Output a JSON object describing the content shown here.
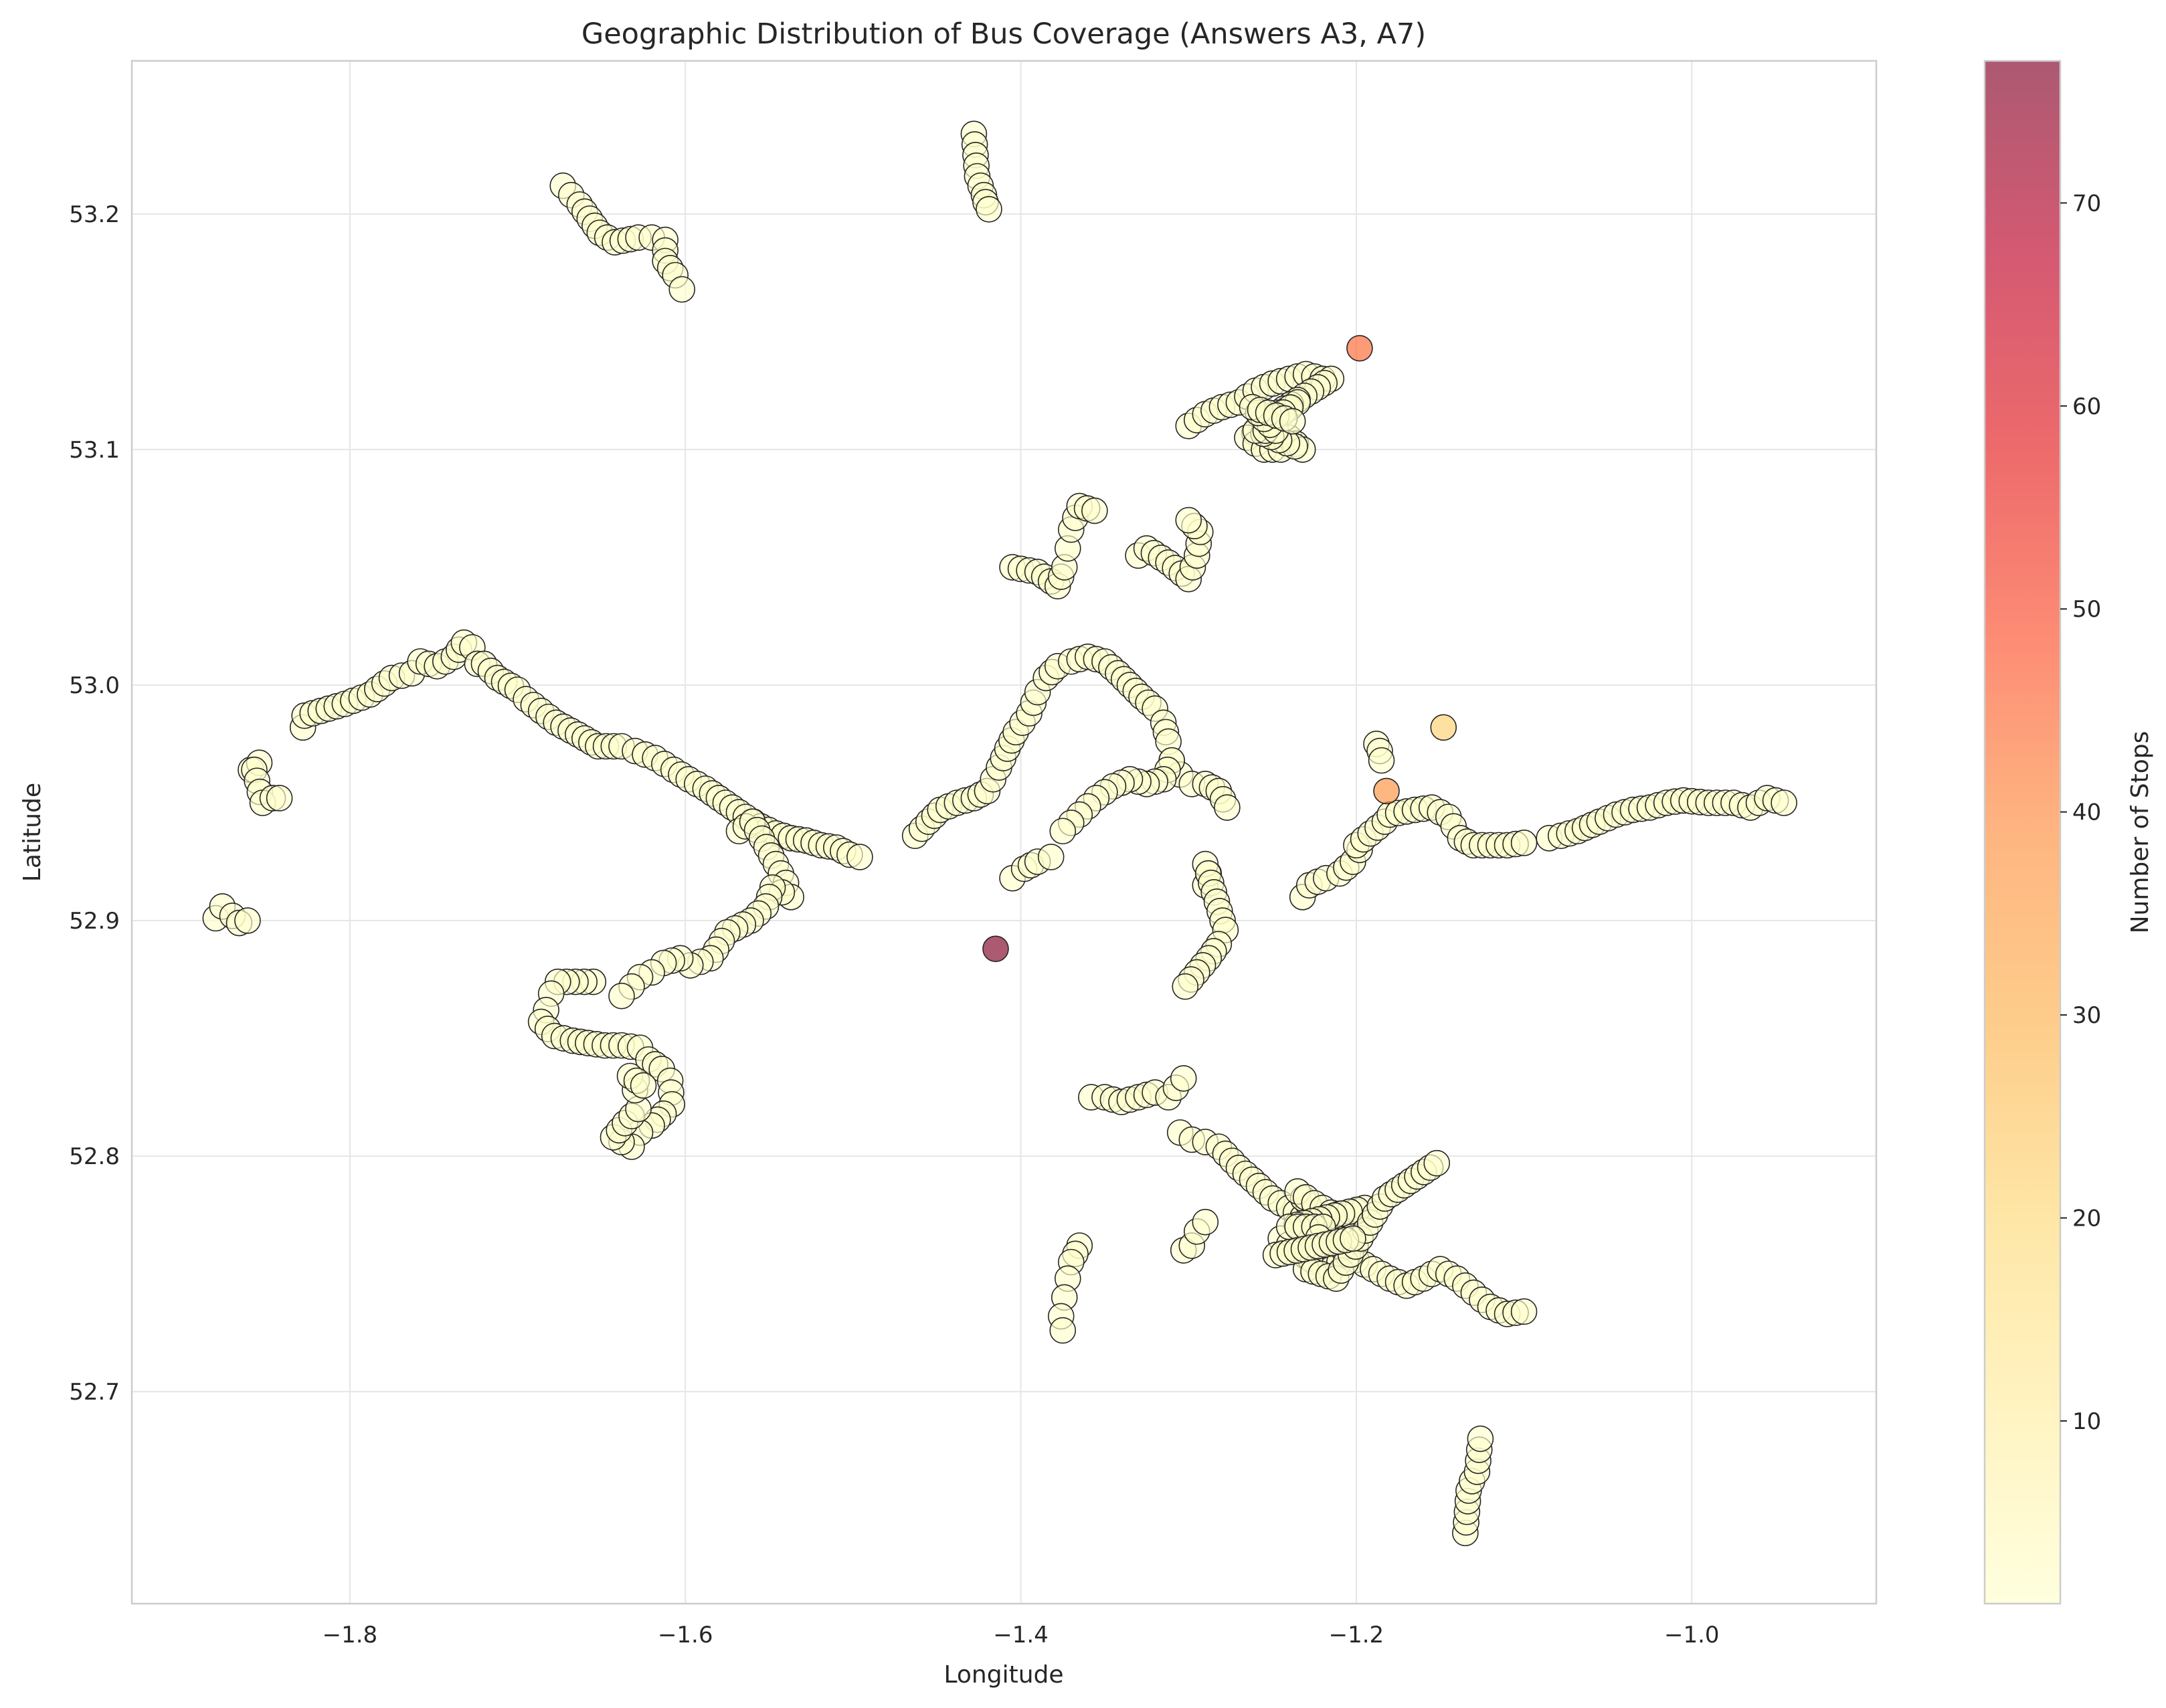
{
  "chart_data": {
    "type": "scatter",
    "title": "Geographic Distribution of Bus Coverage (Answers A3, A7)",
    "xlabel": "Longitude",
    "ylabel": "Latitude",
    "xlim": [
      -1.93,
      -0.89
    ],
    "ylim": [
      52.61,
      53.265
    ],
    "xticks": [
      -1.8,
      -1.6,
      -1.4,
      -1.2,
      -1.0
    ],
    "xtick_labels": [
      "−1.8",
      "−1.6",
      "−1.4",
      "−1.2",
      "−1.0"
    ],
    "yticks": [
      52.7,
      52.8,
      52.9,
      53.0,
      53.1,
      53.2
    ],
    "ytick_labels": [
      "52.7",
      "52.8",
      "52.9",
      "53.0",
      "53.1",
      "53.2"
    ],
    "grid": true,
    "marker": {
      "fill_opacity": 0.65,
      "edge_color": "#262626"
    },
    "colorbar": {
      "label": "Number of Stops",
      "range": [
        1,
        77
      ],
      "ticks": [
        10,
        20,
        30,
        40,
        50,
        60,
        70
      ],
      "tick_labels": [
        "10",
        "20",
        "30",
        "40",
        "50",
        "60",
        "70"
      ],
      "colormap": "YlOrRd",
      "stops": [
        "#ffffcc",
        "#ffeda0",
        "#fed976",
        "#feb24c",
        "#fd8d3c",
        "#fc4e2a",
        "#e31a1c",
        "#bd0026",
        "#800026"
      ]
    },
    "routes": [
      [
        [
          -1.673,
          53.212
        ],
        [
          -1.668,
          53.208
        ],
        [
          -1.663,
          53.204
        ],
        [
          -1.651,
          53.192
        ],
        [
          -1.642,
          53.188
        ],
        [
          -1.628,
          53.19
        ],
        [
          -1.62,
          53.19
        ],
        [
          -1.612,
          53.189
        ],
        [
          -1.612,
          53.18
        ],
        [
          -1.606,
          53.174
        ],
        [
          -1.602,
          53.168
        ]
      ],
      [
        [
          -1.428,
          53.234
        ],
        [
          -1.426,
          53.216
        ],
        [
          -1.424,
          53.212
        ],
        [
          -1.422,
          53.208
        ],
        [
          -1.421,
          53.205
        ],
        [
          -1.419,
          53.202
        ]
      ],
      [
        [
          -1.88,
          52.901
        ],
        [
          -1.876,
          52.906
        ],
        [
          -1.87,
          52.902
        ],
        [
          -1.866,
          52.899
        ],
        [
          -1.861,
          52.9
        ]
      ],
      [
        [
          -1.859,
          52.964
        ],
        [
          -1.854,
          52.967
        ],
        [
          -1.857,
          52.964
        ],
        [
          -1.852,
          52.95
        ],
        [
          -1.846,
          52.952
        ],
        [
          -1.842,
          52.952
        ]
      ],
      [
        [
          -1.828,
          52.982
        ],
        [
          -1.827,
          52.987
        ],
        [
          -1.803,
          52.992
        ],
        [
          -1.788,
          52.996
        ],
        [
          -1.775,
          53.003
        ],
        [
          -1.763,
          53.005
        ],
        [
          -1.758,
          53.01
        ],
        [
          -1.748,
          53.008
        ],
        [
          -1.738,
          53.012
        ],
        [
          -1.732,
          53.018
        ],
        [
          -1.727,
          53.016
        ],
        [
          -1.724,
          53.009
        ],
        [
          -1.72,
          53.009
        ],
        [
          -1.712,
          53.003
        ],
        [
          -1.7,
          52.998
        ],
        [
          -1.695,
          52.994
        ],
        [
          -1.677,
          52.984
        ],
        [
          -1.664,
          52.979
        ],
        [
          -1.652,
          52.974
        ],
        [
          -1.638,
          52.974
        ],
        [
          -1.63,
          52.972
        ],
        [
          -1.618,
          52.969
        ],
        [
          -1.607,
          52.964
        ],
        [
          -1.598,
          52.96
        ],
        [
          -1.588,
          52.956
        ],
        [
          -1.58,
          52.952
        ],
        [
          -1.572,
          52.948
        ],
        [
          -1.564,
          52.944
        ],
        [
          -1.555,
          52.94
        ],
        [
          -1.546,
          52.937
        ],
        [
          -1.537,
          52.935
        ],
        [
          -1.528,
          52.934
        ],
        [
          -1.519,
          52.932
        ],
        [
          -1.51,
          52.931
        ],
        [
          -1.502,
          52.928
        ],
        [
          -1.496,
          52.927
        ]
      ],
      [
        [
          -1.568,
          52.938
        ],
        [
          -1.56,
          52.942
        ],
        [
          -1.546,
          52.924
        ],
        [
          -1.54,
          52.916
        ],
        [
          -1.537,
          52.91
        ],
        [
          -1.548,
          52.914
        ],
        [
          -1.552,
          52.906
        ],
        [
          -1.561,
          52.9
        ],
        [
          -1.575,
          52.895
        ],
        [
          -1.585,
          52.884
        ],
        [
          -1.597,
          52.881
        ],
        [
          -1.603,
          52.884
        ],
        [
          -1.613,
          52.882
        ],
        [
          -1.62,
          52.878
        ],
        [
          -1.627,
          52.876
        ],
        [
          -1.632,
          52.872
        ],
        [
          -1.638,
          52.868
        ]
      ],
      [
        [
          -1.655,
          52.874
        ],
        [
          -1.676,
          52.874
        ],
        [
          -1.68,
          52.869
        ],
        [
          -1.683,
          52.862
        ],
        [
          -1.686,
          52.857
        ],
        [
          -1.678,
          52.851
        ],
        [
          -1.667,
          52.849
        ],
        [
          -1.658,
          52.848
        ],
        [
          -1.648,
          52.847
        ],
        [
          -1.638,
          52.847
        ],
        [
          -1.627,
          52.846
        ],
        [
          -1.622,
          52.841
        ],
        [
          -1.614,
          52.837
        ],
        [
          -1.609,
          52.832
        ],
        [
          -1.608,
          52.822
        ],
        [
          -1.613,
          52.818
        ],
        [
          -1.62,
          52.813
        ],
        [
          -1.627,
          52.81
        ],
        [
          -1.632,
          52.804
        ],
        [
          -1.638,
          52.806
        ],
        [
          -1.643,
          52.808
        ],
        [
          -1.636,
          52.814
        ],
        [
          -1.628,
          52.82
        ],
        [
          -1.63,
          52.828
        ],
        [
          -1.633,
          52.834
        ],
        [
          -1.625,
          52.83
        ]
      ],
      [
        [
          -1.463,
          52.936
        ],
        [
          -1.455,
          52.942
        ],
        [
          -1.448,
          52.947
        ],
        [
          -1.438,
          52.95
        ],
        [
          -1.428,
          52.952
        ],
        [
          -1.42,
          52.955
        ],
        [
          -1.413,
          52.965
        ],
        [
          -1.408,
          52.973
        ],
        [
          -1.403,
          52.98
        ],
        [
          -1.395,
          52.988
        ],
        [
          -1.39,
          52.997
        ],
        [
          -1.385,
          53.003
        ],
        [
          -1.378,
          53.008
        ],
        [
          -1.37,
          53.01
        ],
        [
          -1.36,
          53.012
        ],
        [
          -1.35,
          53.01
        ],
        [
          -1.342,
          53.005
        ],
        [
          -1.335,
          53.0
        ],
        [
          -1.328,
          52.995
        ],
        [
          -1.32,
          52.99
        ],
        [
          -1.315,
          52.984
        ],
        [
          -1.312,
          52.976
        ],
        [
          -1.31,
          52.968
        ],
        [
          -1.305,
          52.962
        ],
        [
          -1.298,
          52.958
        ],
        [
          -1.29,
          52.958
        ],
        [
          -1.282,
          52.955
        ],
        [
          -1.277,
          52.948
        ]
      ],
      [
        [
          -1.31,
          52.968
        ],
        [
          -1.315,
          52.96
        ],
        [
          -1.325,
          52.958
        ],
        [
          -1.335,
          52.96
        ],
        [
          -1.345,
          52.957
        ],
        [
          -1.355,
          52.952
        ],
        [
          -1.365,
          52.945
        ],
        [
          -1.375,
          52.938
        ]
      ],
      [
        [
          -1.405,
          52.918
        ],
        [
          -1.398,
          52.922
        ],
        [
          -1.39,
          52.925
        ],
        [
          -1.382,
          52.927
        ]
      ],
      [
        [
          -1.29,
          52.915
        ],
        [
          -1.288,
          52.92
        ],
        [
          -1.29,
          52.924
        ],
        [
          -1.278,
          52.896
        ],
        [
          -1.282,
          52.89
        ],
        [
          -1.288,
          52.884
        ],
        [
          -1.295,
          52.878
        ],
        [
          -1.302,
          52.872
        ]
      ],
      [
        [
          -1.405,
          53.05
        ],
        [
          -1.39,
          53.048
        ],
        [
          -1.378,
          53.042
        ],
        [
          -1.374,
          53.05
        ],
        [
          -1.372,
          53.058
        ],
        [
          -1.37,
          53.066
        ],
        [
          -1.365,
          53.076
        ],
        [
          -1.356,
          53.074
        ]
      ],
      [
        [
          -1.33,
          53.055
        ],
        [
          -1.325,
          53.058
        ],
        [
          -1.312,
          53.052
        ],
        [
          -1.3,
          53.045
        ],
        [
          -1.295,
          53.055
        ],
        [
          -1.293,
          53.065
        ],
        [
          -1.3,
          53.07
        ]
      ],
      [
        [
          -1.3,
          53.11
        ],
        [
          -1.29,
          53.115
        ],
        [
          -1.28,
          53.118
        ],
        [
          -1.27,
          53.12
        ],
        [
          -1.26,
          53.125
        ],
        [
          -1.25,
          53.128
        ],
        [
          -1.24,
          53.13
        ],
        [
          -1.23,
          53.132
        ],
        [
          -1.22,
          53.13
        ],
        [
          -1.215,
          53.13
        ],
        [
          -1.255,
          53.112
        ],
        [
          -1.245,
          53.115
        ],
        [
          -1.235,
          53.12
        ],
        [
          -1.265,
          53.105
        ],
        [
          -1.255,
          53.1
        ],
        [
          -1.245,
          53.1
        ],
        [
          -1.24,
          53.105
        ],
        [
          -1.232,
          53.1
        ],
        [
          -1.26,
          53.108
        ],
        [
          -1.248,
          53.108
        ],
        [
          -1.262,
          53.118
        ],
        [
          -1.238,
          53.112
        ]
      ],
      [
        [
          -1.232,
          52.91
        ],
        [
          -1.228,
          52.915
        ],
        [
          -1.218,
          52.918
        ],
        [
          -1.21,
          52.92
        ],
        [
          -1.202,
          52.925
        ],
        [
          -1.198,
          52.93
        ],
        [
          -1.2,
          52.932
        ],
        [
          -1.183,
          52.942
        ],
        [
          -1.18,
          52.945
        ],
        [
          -1.165,
          52.947
        ],
        [
          -1.155,
          52.948
        ],
        [
          -1.145,
          52.944
        ],
        [
          -1.142,
          52.94
        ],
        [
          -1.138,
          52.935
        ],
        [
          -1.13,
          52.932
        ],
        [
          -1.12,
          52.932
        ],
        [
          -1.11,
          52.932
        ],
        [
          -1.1,
          52.933
        ]
      ],
      [
        [
          -1.188,
          52.975
        ],
        [
          -1.186,
          52.972
        ],
        [
          -1.185,
          52.968
        ]
      ],
      [
        [
          -1.085,
          52.935
        ],
        [
          -1.078,
          52.936
        ],
        [
          -1.068,
          52.938
        ],
        [
          -1.055,
          52.942
        ],
        [
          -1.045,
          52.945
        ],
        [
          -1.035,
          52.947
        ],
        [
          -1.025,
          52.948
        ],
        [
          -1.015,
          52.95
        ],
        [
          -1.005,
          52.951
        ],
        [
          -0.99,
          52.95
        ],
        [
          -0.975,
          52.95
        ],
        [
          -0.965,
          52.948
        ],
        [
          -0.955,
          52.952
        ],
        [
          -0.945,
          52.95
        ]
      ],
      [
        [
          -1.358,
          52.825
        ],
        [
          -1.35,
          52.825
        ],
        [
          -1.34,
          52.823
        ],
        [
          -1.33,
          52.825
        ],
        [
          -1.32,
          52.827
        ],
        [
          -1.312,
          52.825
        ],
        [
          -1.303,
          52.833
        ]
      ],
      [
        [
          -1.305,
          52.81
        ],
        [
          -1.298,
          52.807
        ],
        [
          -1.29,
          52.806
        ],
        [
          -1.282,
          52.804
        ],
        [
          -1.27,
          52.795
        ],
        [
          -1.262,
          52.79
        ],
        [
          -1.25,
          52.782
        ],
        [
          -1.24,
          52.778
        ],
        [
          -1.232,
          52.774
        ],
        [
          -1.225,
          52.77
        ],
        [
          -1.218,
          52.765
        ],
        [
          -1.21,
          52.76
        ],
        [
          -1.2,
          52.756
        ],
        [
          -1.19,
          52.752
        ],
        [
          -1.18,
          52.748
        ],
        [
          -1.17,
          52.745
        ],
        [
          -1.16,
          52.748
        ],
        [
          -1.15,
          52.752
        ],
        [
          -1.14,
          52.748
        ],
        [
          -1.13,
          52.742
        ],
        [
          -1.12,
          52.736
        ],
        [
          -1.11,
          52.733
        ],
        [
          -1.1,
          52.734
        ]
      ],
      [
        [
          -1.245,
          52.765
        ],
        [
          -1.235,
          52.76
        ],
        [
          -1.225,
          52.755
        ],
        [
          -1.215,
          52.752
        ],
        [
          -1.205,
          52.758
        ],
        [
          -1.235,
          52.785
        ],
        [
          -1.225,
          52.78
        ],
        [
          -1.215,
          52.776
        ],
        [
          -1.205,
          52.775
        ],
        [
          -1.195,
          52.778
        ],
        [
          -1.24,
          52.77
        ],
        [
          -1.22,
          52.77
        ],
        [
          -1.23,
          52.752
        ],
        [
          -1.212,
          52.748
        ],
        [
          -1.183,
          52.782
        ],
        [
          -1.152,
          52.797
        ],
        [
          -1.248,
          52.758
        ],
        [
          -1.202,
          52.765
        ]
      ],
      [
        [
          -1.303,
          52.76
        ],
        [
          -1.298,
          52.762
        ],
        [
          -1.295,
          52.768
        ],
        [
          -1.29,
          52.772
        ]
      ],
      [
        [
          -1.365,
          52.762
        ],
        [
          -1.37,
          52.755
        ],
        [
          -1.372,
          52.748
        ],
        [
          -1.374,
          52.74
        ],
        [
          -1.376,
          52.732
        ],
        [
          -1.375,
          52.726
        ]
      ],
      [
        [
          -1.135,
          52.64
        ],
        [
          -1.133,
          52.658
        ],
        [
          -1.131,
          52.662
        ],
        [
          -1.128,
          52.666
        ],
        [
          -1.126,
          52.68
        ]
      ]
    ],
    "highlights": [
      {
        "lon": -1.415,
        "lat": 52.888,
        "stops": 77
      },
      {
        "lon": -1.198,
        "lat": 53.143,
        "stops": 45
      },
      {
        "lon": -1.182,
        "lat": 52.955,
        "stops": 38
      },
      {
        "lon": -1.148,
        "lat": 52.982,
        "stops": 22
      }
    ]
  }
}
